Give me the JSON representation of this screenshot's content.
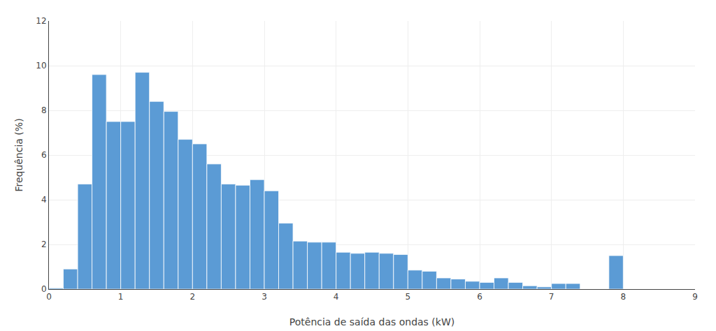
{
  "chart_data": {
    "type": "histogram",
    "bins": [
      0,
      0.2,
      0.4,
      0.6,
      0.8,
      1,
      1.2,
      1.4,
      1.6,
      1.8,
      2,
      2.2,
      2.4,
      2.6,
      2.8,
      3,
      3.2,
      3.4,
      3.6,
      3.8,
      4,
      4.2,
      4.4,
      4.6,
      4.8,
      5,
      5.2,
      5.4,
      5.6,
      5.8,
      6,
      6.2,
      6.4,
      6.6,
      6.8,
      7,
      7.2,
      7.4,
      7.6,
      7.8,
      8
    ],
    "values": [
      0.05,
      0.9,
      4.7,
      9.6,
      7.5,
      7.5,
      9.7,
      8.4,
      7.95,
      6.7,
      6.5,
      5.6,
      4.7,
      4.65,
      4.9,
      4.4,
      2.95,
      2.15,
      2.1,
      2.1,
      1.65,
      1.6,
      1.65,
      1.6,
      1.55,
      0.85,
      0.8,
      0.5,
      0.45,
      0.35,
      0.3,
      0.5,
      0.3,
      0.15,
      0.1,
      0.25,
      0.25,
      0.0,
      0.0,
      1.5
    ],
    "color": "#5B9BD5",
    "xlabel": "Potência de saída das ondas (kW)",
    "ylabel": "Frequência (%)",
    "xlim": [
      0,
      9
    ],
    "ylim": [
      0,
      12
    ],
    "xticks": [
      0,
      1,
      2,
      3,
      4,
      5,
      6,
      7,
      8,
      9
    ],
    "yticks": [
      0,
      2,
      4,
      6,
      8,
      10,
      12
    ],
    "grid": true
  }
}
